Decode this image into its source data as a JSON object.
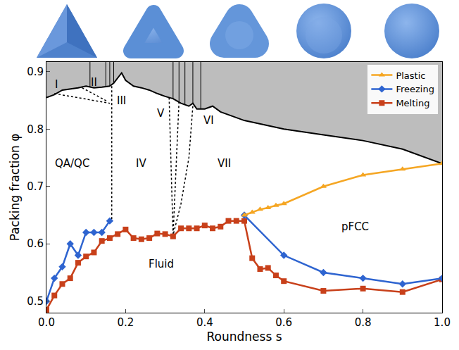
{
  "chart_data": {
    "type": "line",
    "xlabel": "Roundness s",
    "ylabel": "Packing fraction φ",
    "xlim": [
      0,
      1
    ],
    "ylim": [
      0.48,
      0.917
    ],
    "xticks": [
      {
        "value": 0,
        "label": "0.0"
      },
      0.2,
      0.4,
      0.6,
      0.8,
      {
        "value": 1,
        "label": "1.0"
      }
    ],
    "yticks": [
      0.5,
      0.6,
      0.7,
      0.8,
      0.9
    ],
    "grid": false,
    "legend": "top right",
    "series": [
      {
        "name": "Melting",
        "color": "#c8401a",
        "marker": "square",
        "x": [
          0.0,
          0.02,
          0.04,
          0.06,
          0.08,
          0.1,
          0.12,
          0.14,
          0.16,
          0.18,
          0.2,
          0.22,
          0.24,
          0.26,
          0.28,
          0.3,
          0.32,
          0.34,
          0.36,
          0.38,
          0.4,
          0.42,
          0.44,
          0.46,
          0.48,
          0.5,
          0.52,
          0.54,
          0.56,
          0.58,
          0.6,
          0.7,
          0.8,
          0.9,
          1.0
        ],
        "values": [
          0.485,
          0.51,
          0.53,
          0.54,
          0.567,
          0.578,
          0.585,
          0.605,
          0.61,
          0.617,
          0.625,
          0.61,
          0.608,
          0.61,
          0.618,
          0.617,
          0.613,
          0.627,
          0.627,
          0.627,
          0.632,
          0.627,
          0.63,
          0.64,
          0.64,
          0.64,
          0.575,
          0.556,
          0.558,
          0.545,
          0.535,
          0.518,
          0.522,
          0.516,
          0.538
        ]
      },
      {
        "name": "Freezing",
        "color": "#2e64d0",
        "marker": "diamond",
        "x": [
          0.0,
          0.02,
          0.04,
          0.06,
          0.08,
          0.1,
          0.12,
          0.14,
          0.16,
          0.33,
          0.5,
          0.6,
          0.7,
          0.8,
          0.9,
          1.0
        ],
        "values": [
          0.5,
          0.54,
          0.56,
          0.6,
          0.58,
          0.62,
          0.62,
          0.62,
          0.64,
          null,
          0.65,
          0.58,
          0.55,
          0.54,
          0.53,
          0.54
        ]
      },
      {
        "name": "Plastic",
        "color": "#f5a623",
        "marker": "triangle-up",
        "x": [
          0.5,
          0.52,
          0.54,
          0.56,
          0.58,
          0.6,
          0.7,
          0.8,
          0.9,
          1.0
        ],
        "values": [
          0.65,
          0.655,
          0.66,
          0.663,
          0.667,
          0.67,
          0.7,
          0.72,
          0.73,
          0.74
        ]
      }
    ],
    "boundary": {
      "color": "#000000",
      "x": [
        0.0,
        0.02,
        0.04,
        0.06,
        0.08,
        0.1,
        0.12,
        0.14,
        0.16,
        0.17,
        0.19,
        0.2,
        0.22,
        0.24,
        0.26,
        0.28,
        0.3,
        0.32,
        0.34,
        0.36,
        0.37,
        0.38,
        0.4,
        0.42,
        0.44,
        0.5,
        0.6,
        0.7,
        0.8,
        0.9,
        1.0
      ],
      "values": [
        0.855,
        0.86,
        0.868,
        0.87,
        0.872,
        0.875,
        0.872,
        0.873,
        0.875,
        0.88,
        0.898,
        0.885,
        0.875,
        0.872,
        0.868,
        0.862,
        0.857,
        0.853,
        0.845,
        0.84,
        0.845,
        0.835,
        0.835,
        0.84,
        0.83,
        0.815,
        0.8,
        0.79,
        0.78,
        0.765,
        0.74
      ]
    },
    "phase_boundaries": [
      {
        "x": 0.11,
        "y": 0.873
      },
      {
        "x": 0.15,
        "y": 0.874
      },
      {
        "x": 0.16,
        "y": 0.875
      },
      {
        "x": 0.17,
        "y": 0.88
      },
      {
        "x": 0.32,
        "y": 0.853
      },
      {
        "x": 0.335,
        "y": 0.848
      },
      {
        "x": 0.35,
        "y": 0.842
      },
      {
        "x": 0.37,
        "y": 0.845
      },
      {
        "x": 0.39,
        "y": 0.835
      }
    ],
    "phase_lines": {
      "line_style": "dot",
      "color": "#000000",
      "lines": [
        {
          "x": [
            0.02,
            0.16
          ],
          "values": [
            0.862,
            0.845
          ]
        },
        {
          "x": [
            0.09,
            0.155
          ],
          "values": [
            0.872,
            0.848
          ]
        },
        {
          "x": [
            0.165,
            0.165
          ],
          "values": [
            0.875,
            0.64
          ]
        },
        {
          "x": [
            0.31,
            0.32
          ],
          "values": [
            0.855,
            0.615
          ]
        },
        {
          "x": [
            0.335,
            0.32
          ],
          "values": [
            0.848,
            0.615
          ]
        },
        {
          "x": [
            0.37,
            0.36,
            0.34,
            0.32
          ],
          "values": [
            0.84,
            0.75,
            0.67,
            0.615
          ]
        }
      ]
    },
    "annotations": [
      {
        "text": "I",
        "x": 0.025,
        "y": 0.878
      },
      {
        "text": "II",
        "x": 0.12,
        "y": 0.882
      },
      {
        "text": "III",
        "x": 0.19,
        "y": 0.85
      },
      {
        "text": "QA/QC",
        "x": 0.065,
        "y": 0.74
      },
      {
        "text": "IV",
        "x": 0.24,
        "y": 0.74
      },
      {
        "text": "V",
        "x": 0.29,
        "y": 0.828
      },
      {
        "text": "VI",
        "x": 0.41,
        "y": 0.815
      },
      {
        "text": "VII",
        "x": 0.45,
        "y": 0.74
      },
      {
        "text": "Fluid",
        "x": 0.29,
        "y": 0.565
      },
      {
        "text": "pFCC",
        "x": 0.78,
        "y": 0.63
      }
    ]
  }
}
